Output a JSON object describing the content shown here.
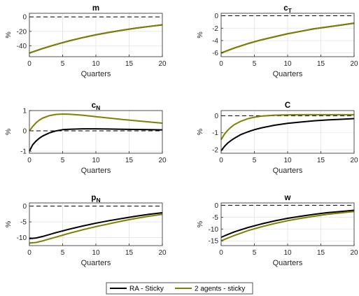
{
  "chart_data": [
    {
      "type": "line",
      "title": "m",
      "xlabel": "Quarters",
      "ylabel": "%",
      "xlim": [
        0,
        20
      ],
      "ylim": [
        -55,
        5
      ],
      "yticks": [
        -40,
        -20,
        0
      ],
      "xticks": [
        0,
        5,
        10,
        15,
        20
      ],
      "grid": true,
      "zero_line": "dashed",
      "x": [
        0,
        2,
        4,
        6,
        8,
        10,
        12,
        14,
        16,
        18,
        20
      ],
      "series": [
        {
          "name": "RA - Sticky",
          "color": "#000000",
          "values": [
            -50,
            -43.7,
            -38.1,
            -33.1,
            -28.7,
            -24.8,
            -21.4,
            -18.3,
            -15.6,
            -13.2,
            -11
          ]
        },
        {
          "name": "2 agents - sticky",
          "color": "#808000",
          "values": [
            -50,
            -43.7,
            -38.1,
            -33.1,
            -28.7,
            -24.8,
            -21.4,
            -18.3,
            -15.6,
            -13.2,
            -11
          ]
        }
      ]
    },
    {
      "type": "line",
      "title": "c",
      "title_subscript": "T",
      "xlabel": "Quarters",
      "ylabel": "%",
      "xlim": [
        0,
        20
      ],
      "ylim": [
        -6.6,
        0.4
      ],
      "yticks": [
        -6,
        -4,
        -2,
        0
      ],
      "xticks": [
        0,
        5,
        10,
        15,
        20
      ],
      "grid": true,
      "zero_line": "dashed",
      "x": [
        0,
        2,
        4,
        6,
        8,
        10,
        12,
        14,
        16,
        18,
        20
      ],
      "series": [
        {
          "name": "RA - Sticky",
          "color": "#000000",
          "values": [
            -6,
            -5.2,
            -4.5,
            -3.9,
            -3.4,
            -2.9,
            -2.5,
            -2.1,
            -1.8,
            -1.5,
            -1.2
          ]
        },
        {
          "name": "2 agents - sticky",
          "color": "#808000",
          "values": [
            -6,
            -5.2,
            -4.5,
            -3.9,
            -3.4,
            -2.9,
            -2.5,
            -2.1,
            -1.8,
            -1.5,
            -1.2
          ]
        }
      ]
    },
    {
      "type": "line",
      "title": "c",
      "title_subscript": "N",
      "xlabel": "Quarters",
      "ylabel": "%",
      "xlim": [
        0,
        20
      ],
      "ylim": [
        -1.1,
        1
      ],
      "yticks": [
        -1,
        0,
        1
      ],
      "xticks": [
        0,
        5,
        10,
        15,
        20
      ],
      "grid": true,
      "zero_line": "dashed",
      "x": [
        0,
        0.5,
        1,
        1.5,
        2,
        3,
        4,
        5,
        6,
        8,
        10,
        12,
        14,
        16,
        18,
        20
      ],
      "series": [
        {
          "name": "RA - Sticky",
          "color": "#000000",
          "values": [
            -1,
            -0.68,
            -0.5,
            -0.36,
            -0.25,
            -0.1,
            0,
            0.06,
            0.08,
            0.1,
            0.1,
            0.09,
            0.08,
            0.07,
            0.06,
            0.05
          ]
        },
        {
          "name": "2 agents - sticky",
          "color": "#808000",
          "values": [
            0,
            0.22,
            0.4,
            0.53,
            0.63,
            0.75,
            0.81,
            0.83,
            0.82,
            0.77,
            0.7,
            0.63,
            0.56,
            0.5,
            0.44,
            0.38
          ]
        }
      ]
    },
    {
      "type": "line",
      "title": "C",
      "xlabel": "Quarters",
      "ylabel": "%",
      "xlim": [
        0,
        20
      ],
      "ylim": [
        -2.2,
        0.3
      ],
      "yticks": [
        -2,
        -1,
        0
      ],
      "xticks": [
        0,
        5,
        10,
        15,
        20
      ],
      "grid": true,
      "zero_line": "dashed",
      "x": [
        0,
        0.5,
        1,
        1.5,
        2,
        3,
        4,
        5,
        6,
        8,
        10,
        12,
        14,
        16,
        18,
        20
      ],
      "series": [
        {
          "name": "RA - Sticky",
          "color": "#000000",
          "values": [
            -2.05,
            -1.8,
            -1.6,
            -1.45,
            -1.32,
            -1.1,
            -0.95,
            -0.82,
            -0.72,
            -0.56,
            -0.45,
            -0.37,
            -0.3,
            -0.25,
            -0.21,
            -0.17
          ]
        },
        {
          "name": "2 agents - sticky",
          "color": "#808000",
          "values": [
            -1.4,
            -1.08,
            -0.85,
            -0.67,
            -0.52,
            -0.32,
            -0.18,
            -0.09,
            -0.03,
            0.03,
            0.05,
            0.06,
            0.06,
            0.06,
            0.06,
            0.06
          ]
        }
      ]
    },
    {
      "type": "line",
      "title": "p",
      "title_subscript": "N",
      "xlabel": "Quarters",
      "ylabel": "%",
      "xlim": [
        0,
        20
      ],
      "ylim": [
        -12.5,
        1
      ],
      "yticks": [
        -10,
        -5,
        0
      ],
      "xticks": [
        0,
        5,
        10,
        15,
        20
      ],
      "grid": true,
      "zero_line": "dashed",
      "x": [
        0,
        1,
        2,
        4,
        6,
        8,
        10,
        12,
        14,
        16,
        18,
        20
      ],
      "series": [
        {
          "name": "RA - Sticky",
          "color": "#000000",
          "values": [
            -10.3,
            -10.1,
            -9.6,
            -8.4,
            -7.3,
            -6.3,
            -5.4,
            -4.6,
            -3.9,
            -3.2,
            -2.6,
            -2.1
          ]
        },
        {
          "name": "2 agents - sticky",
          "color": "#808000",
          "values": [
            -11.7,
            -11.5,
            -11,
            -9.8,
            -8.6,
            -7.5,
            -6.5,
            -5.6,
            -4.7,
            -3.9,
            -3.2,
            -2.6
          ]
        }
      ]
    },
    {
      "type": "line",
      "title": "w",
      "xlabel": "Quarters",
      "ylabel": "%",
      "xlim": [
        0,
        20
      ],
      "ylim": [
        -17,
        1
      ],
      "yticks": [
        -15,
        -10,
        -5,
        0
      ],
      "xticks": [
        0,
        5,
        10,
        15,
        20
      ],
      "grid": true,
      "zero_line": "dashed",
      "x": [
        0,
        1,
        2,
        4,
        6,
        8,
        10,
        12,
        14,
        16,
        18,
        20
      ],
      "series": [
        {
          "name": "RA - Sticky",
          "color": "#000000",
          "values": [
            -13.5,
            -12.3,
            -11.2,
            -9.4,
            -7.9,
            -6.6,
            -5.5,
            -4.6,
            -3.8,
            -3.1,
            -2.6,
            -2.1
          ]
        },
        {
          "name": "2 agents - sticky",
          "color": "#808000",
          "values": [
            -15,
            -13.8,
            -12.7,
            -10.7,
            -9.1,
            -7.7,
            -6.5,
            -5.5,
            -4.6,
            -3.8,
            -3.2,
            -2.6
          ]
        }
      ]
    }
  ],
  "legend": {
    "placement": "bottom-center",
    "items": [
      {
        "label": "RA - Sticky",
        "color": "#000000"
      },
      {
        "label": "2 agents - sticky",
        "color": "#808000"
      }
    ]
  }
}
